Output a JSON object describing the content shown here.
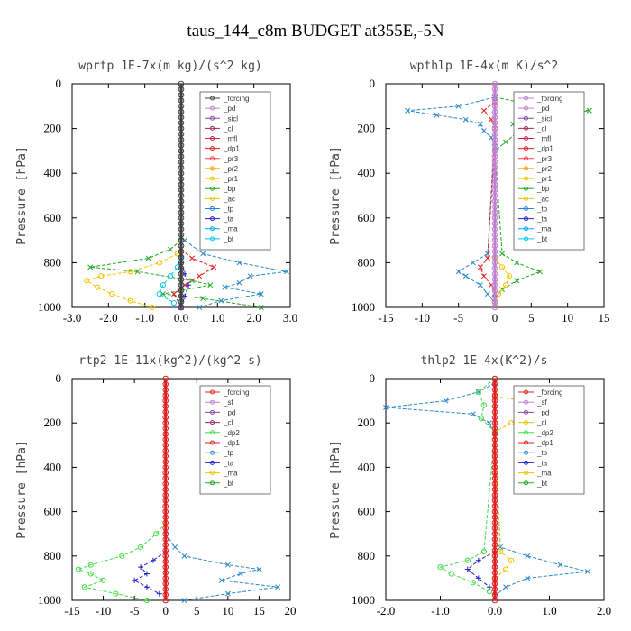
{
  "figure_title": "taus_144_c8m  BUDGET at355E,-5N",
  "chart_data": [
    {
      "type": "line",
      "title": "wprtp  1E-7x(m kg)/(s^2 kg)",
      "ylabel": "Pressure [hPa]",
      "xlim": [
        -3.0,
        3.0
      ],
      "ylim": [
        1000,
        0
      ],
      "xticks": [
        "-3.0",
        "-2.0",
        "-1.0",
        "0.0",
        "1.0",
        "2.0",
        "3.0"
      ],
      "yticks": [
        "0",
        "200",
        "400",
        "600",
        "800",
        "1000"
      ],
      "legend": [
        "_forcing",
        "_pd",
        "_sicl",
        "_cl",
        "_mfl",
        "_dp1",
        "_pr3",
        "_pr2",
        "_pr1",
        "_bp",
        "_ac",
        "_tp",
        "_ta",
        "_ma",
        "_bt"
      ],
      "series": [
        {
          "name": "_bp",
          "color": "#22aa22",
          "marker": "x",
          "y": [
            700,
            740,
            780,
            820,
            840,
            880,
            900,
            940,
            960,
            1000
          ],
          "x": [
            0.0,
            -0.3,
            -0.9,
            -2.5,
            -1.2,
            0.3,
            0.8,
            -0.5,
            0.6,
            2.2
          ]
        },
        {
          "name": "_ac",
          "color": "#f2c200",
          "marker": "o",
          "y": [
            760,
            800,
            840,
            860,
            880,
            910,
            940,
            970,
            1000
          ],
          "x": [
            -0.1,
            -0.6,
            -1.4,
            -2.2,
            -2.6,
            -2.3,
            -1.9,
            -1.4,
            -0.8
          ]
        },
        {
          "name": "_tp",
          "color": "#2a88cc",
          "marker": "x",
          "y": [
            700,
            760,
            800,
            840,
            860,
            890,
            910,
            940,
            970,
            1000
          ],
          "x": [
            0.1,
            0.6,
            1.6,
            2.9,
            1.9,
            1.6,
            1.2,
            2.2,
            1.1,
            0.5
          ]
        },
        {
          "name": "_dp1",
          "color": "#e02020",
          "marker": "x",
          "y": [
            740,
            780,
            820,
            860,
            900,
            940,
            1000
          ],
          "x": [
            0.0,
            0.3,
            0.9,
            0.5,
            0.1,
            -0.2,
            0.0
          ]
        },
        {
          "name": "_bt",
          "color": "#00c8e8",
          "marker": "o",
          "y": [
            780,
            820,
            860,
            900,
            940,
            980
          ],
          "x": [
            0.0,
            -0.1,
            -0.3,
            -0.5,
            -0.6,
            -0.2
          ]
        },
        {
          "name": "_ta",
          "color": "#2020cc",
          "marker": "+",
          "y": [
            800,
            850,
            900,
            950,
            1000
          ],
          "x": [
            0.0,
            0.1,
            0.2,
            0.1,
            0.0
          ]
        },
        {
          "name": "_forcing",
          "color": "#404040",
          "marker": "o",
          "y": [
            0,
            1000
          ],
          "x": [
            0.0,
            0.0
          ]
        }
      ]
    },
    {
      "type": "line",
      "title": "wpthlp  1E-4x(m K)/s^2",
      "ylabel": "Pressure [hPa]",
      "xlim": [
        -15,
        15
      ],
      "ylim": [
        1000,
        0
      ],
      "xticks": [
        "-15",
        "-10",
        "-5",
        "0",
        "5",
        "10",
        "15"
      ],
      "yticks": [
        "0",
        "200",
        "400",
        "600",
        "800",
        "1000"
      ],
      "legend": [
        "_forcing",
        "_pd",
        "_sicl",
        "_cl",
        "_mfl",
        "_dp1",
        "_pr3",
        "_pr2",
        "_pr1",
        "_bp",
        "_ac",
        "_tp",
        "_ta",
        "_ma",
        "_bt"
      ],
      "series": [
        {
          "name": "_tp",
          "color": "#2a88cc",
          "marker": "x",
          "y": [
            60,
            100,
            120,
            140,
            160,
            180,
            210,
            240,
            280,
            760,
            800,
            840,
            860,
            900,
            940,
            980
          ],
          "x": [
            0,
            -5,
            -12,
            -8,
            -4,
            -2,
            -1.5,
            -0.5,
            0,
            -1,
            -3,
            -5,
            -4,
            -2,
            -1,
            0
          ]
        },
        {
          "name": "_bp",
          "color": "#22aa22",
          "marker": "x",
          "y": [
            60,
            100,
            120,
            140,
            180,
            220,
            260,
            300,
            760,
            800,
            840,
            880,
            920,
            960
          ],
          "x": [
            0,
            6,
            13,
            8,
            2.5,
            3,
            1.5,
            0,
            1,
            3,
            6.2,
            3,
            1,
            0
          ]
        },
        {
          "name": "_dp1",
          "color": "#e02020",
          "marker": "x",
          "y": [
            80,
            120,
            160,
            200,
            780,
            820,
            860,
            900,
            940
          ],
          "x": [
            0,
            -1.5,
            -0.5,
            0,
            -1,
            -2,
            -1.5,
            -0.5,
            0
          ]
        },
        {
          "name": "_ac",
          "color": "#f2c200",
          "marker": "o",
          "y": [
            780,
            820,
            860,
            900,
            940,
            980
          ],
          "x": [
            0,
            1,
            2,
            1.5,
            0.5,
            0
          ]
        },
        {
          "name": "_forcing",
          "color": "#c080d0",
          "marker": "o",
          "y": [
            0,
            1000
          ],
          "x": [
            0,
            0
          ]
        }
      ]
    },
    {
      "type": "line",
      "title": "rtp2  1E-11x(kg^2)/(kg^2 s)",
      "ylabel": "Pressure [hPa]",
      "xlim": [
        -15,
        20
      ],
      "ylim": [
        1000,
        0
      ],
      "xticks": [
        "-15",
        "-10",
        "-5",
        "0",
        "5",
        "10",
        "15",
        "20"
      ],
      "yticks": [
        "0",
        "200",
        "400",
        "600",
        "800",
        "1000"
      ],
      "legend": [
        "_forcing",
        "_sf",
        "_pd",
        "_cl",
        "_dp2",
        "_dp1",
        "_tp",
        "_ta",
        "_ma",
        "_bt"
      ],
      "series": [
        {
          "name": "_dp2",
          "color": "#44dd44",
          "marker": "o",
          "y": [
            650,
            700,
            760,
            800,
            840,
            860,
            880,
            910,
            940,
            970,
            1000
          ],
          "x": [
            0,
            -1.5,
            -4,
            -7,
            -12,
            -14,
            -12,
            -10,
            -13,
            -8,
            -3
          ]
        },
        {
          "name": "_tp",
          "color": "#2a88cc",
          "marker": "x",
          "y": [
            700,
            760,
            800,
            840,
            860,
            880,
            910,
            940,
            970,
            1000
          ],
          "x": [
            0,
            1.5,
            3,
            10,
            15,
            12,
            9,
            18,
            10,
            3
          ]
        },
        {
          "name": "_ta",
          "color": "#2020cc",
          "marker": "+",
          "y": [
            780,
            820,
            850,
            880,
            910,
            940,
            970
          ],
          "x": [
            0,
            -2,
            -4,
            -3,
            -5,
            -3,
            -1
          ]
        },
        {
          "name": "_forcing",
          "color": "#e02020",
          "marker": "o",
          "y": [
            0,
            1000
          ],
          "x": [
            0,
            0
          ]
        }
      ]
    },
    {
      "type": "line",
      "title": "thlp2  1E-4x(K^2)/s",
      "ylabel": "Pressure [hPa]",
      "xlim": [
        -2.0,
        2.0
      ],
      "ylim": [
        1000,
        0
      ],
      "xticks": [
        "-2.0",
        "-1.0",
        "0.0",
        "1.0",
        "2.0"
      ],
      "yticks": [
        "0",
        "200",
        "400",
        "600",
        "800",
        "1000"
      ],
      "legend": [
        "_forcing",
        "_sf",
        "_pd",
        "_cl",
        "_dp2",
        "_dp1",
        "_tp",
        "_ta",
        "_ma",
        "_bt"
      ],
      "series": [
        {
          "name": "_tp",
          "color": "#2a88cc",
          "marker": "x",
          "y": [
            20,
            60,
            100,
            130,
            160,
            200,
            260,
            760,
            800,
            840,
            870,
            900,
            940,
            980
          ],
          "x": [
            0,
            -0.3,
            -0.9,
            -2.0,
            -0.4,
            -0.1,
            0,
            0.1,
            0.6,
            1.2,
            1.7,
            0.6,
            0.2,
            0
          ]
        },
        {
          "name": "_cl",
          "color": "#f2c200",
          "marker": "o",
          "y": [
            80,
            110,
            130,
            160,
            200,
            240,
            780,
            820,
            860,
            900
          ],
          "x": [
            0,
            0.8,
            1.5,
            0.6,
            0.3,
            0,
            0.1,
            0.3,
            0.2,
            0
          ]
        },
        {
          "name": "_dp2",
          "color": "#44dd44",
          "marker": "o",
          "y": [
            0,
            60,
            120,
            180,
            240,
            780,
            820,
            850,
            880,
            920,
            960
          ],
          "x": [
            0,
            -0.3,
            -0.2,
            -0.25,
            0,
            -0.2,
            -0.5,
            -1.0,
            -0.8,
            -0.4,
            -0.1
          ]
        },
        {
          "name": "_ta",
          "color": "#2020cc",
          "marker": "+",
          "y": [
            780,
            820,
            860,
            900,
            940
          ],
          "x": [
            0,
            -0.3,
            -0.5,
            -0.3,
            -0.1
          ]
        },
        {
          "name": "_forcing",
          "color": "#e02020",
          "marker": "o",
          "y": [
            0,
            1000
          ],
          "x": [
            0,
            0
          ]
        }
      ]
    }
  ]
}
